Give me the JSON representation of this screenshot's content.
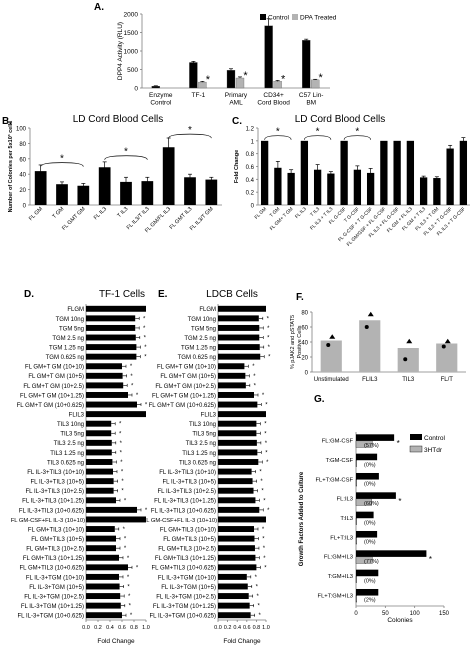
{
  "colors": {
    "black": "#000000",
    "gray": "#b3b3b3",
    "gray_dark": "#8a8a8a",
    "axis": "#7f7f7f"
  },
  "chart_data": [
    {
      "panel": "A.",
      "type": "bar",
      "ylabel": "DPP4 Activity (RLU)",
      "ylim": [
        0,
        2000
      ],
      "yticks": [
        "0",
        "500",
        "1000",
        "1500",
        "2000"
      ],
      "legend": [
        "Control",
        "DPA Treated"
      ],
      "categories": [
        "Enzyme Control",
        "TF-1",
        "Primary AML",
        "CD34+ Cord Blood",
        "C57 Lin- BM"
      ],
      "series": [
        {
          "name": "Control",
          "values": [
            50,
            690,
            480,
            1680,
            1290
          ],
          "errors": [
            10,
            30,
            40,
            190,
            30
          ]
        },
        {
          "name": "DPA Treated",
          "values": [
            null,
            160,
            270,
            180,
            220
          ],
          "errors": [
            null,
            20,
            30,
            25,
            15
          ]
        }
      ],
      "stars": [
        false,
        true,
        true,
        true,
        true
      ]
    },
    {
      "panel": "B.",
      "type": "bar",
      "title": "LD Cord Blood Cells",
      "ylabel": "Number of Colonies per 5x10³ cells",
      "ylim": [
        0,
        100
      ],
      "yticks": [
        "0",
        "20",
        "40",
        "60",
        "80",
        "100"
      ],
      "categories": [
        "FL GM",
        "T GM",
        "FL GMT GM",
        "FL IL3",
        "T IL3",
        "FL IL3/T IL3",
        "FL GM/FL IL3",
        "FL GMT IL3",
        "FL IL3/T GM"
      ],
      "values": [
        44,
        27,
        25,
        49,
        30,
        31,
        75,
        36,
        33
      ],
      "errors": [
        8,
        3,
        3,
        7,
        6,
        5,
        12,
        4,
        3
      ]
    },
    {
      "panel": "C.",
      "type": "bar",
      "title": "LD Cord Blood Cells",
      "ylabel": "Fold Change",
      "ylim": [
        0,
        1.2
      ],
      "yticks": [
        "0",
        "0.2",
        "0.4",
        "0.6",
        "0.8",
        "1",
        "1.2"
      ],
      "categories": [
        "FL GM",
        "T GM",
        "FL GM+ T GM",
        "FL IL3",
        "T IL3",
        "FL IL3 + T IL3",
        "FL G-CSF",
        "T G-CSF",
        "FL G-CSF + T G-CSF",
        "FL GM/GSF + FL G-CSF",
        "FL IL3 + FL G-CSF",
        "FL GM + FL IL3",
        "FL GM + T IL3",
        "FL IL3 + T GM",
        "FL IL3 + T G-CSF",
        "FL IL3 + T G-CSF"
      ],
      "values": [
        1,
        0.58,
        0.5,
        1,
        0.55,
        0.49,
        1,
        0.55,
        0.5,
        1,
        1,
        1,
        0.43,
        0.42,
        0.88,
        1
      ],
      "errors": [
        0,
        0.1,
        0.05,
        0,
        0.08,
        0.03,
        0,
        0.06,
        0.07,
        0,
        0,
        0,
        0.02,
        0.02,
        0.05,
        0.05
      ]
    },
    {
      "panel": "D.",
      "type": "bar",
      "title": "TF-1 Cells",
      "xlabel": "Fold Change",
      "xlim": [
        0,
        1
      ],
      "xticks": [
        "0.0",
        "0.2",
        "0.4",
        "0.6",
        "0.8",
        "1.0"
      ],
      "rows": [
        {
          "label": "FLGM",
          "value": 1.0,
          "group": true
        },
        {
          "label": "TGM 10ng",
          "value": 0.82
        },
        {
          "label": "TGM 5ng",
          "value": 0.82
        },
        {
          "label": "TGM 2.5 ng",
          "value": 0.83
        },
        {
          "label": "TGM 1.25 ng",
          "value": 0.84
        },
        {
          "label": "TGM 0.625 ng",
          "value": 0.84
        },
        {
          "label": "FL GM+T GM (10+10)",
          "value": 0.6
        },
        {
          "label": "FL GM+T GM (10+5)",
          "value": 0.61
        },
        {
          "label": "FL GM+T GM (10+2.5)",
          "value": 0.62
        },
        {
          "label": "FL GM+T GM (10+1.25)",
          "value": 0.7
        },
        {
          "label": "FL GM+T GM (10+0.625)",
          "value": 0.85
        },
        {
          "label": "FLIL3",
          "value": 1.0,
          "group": true
        },
        {
          "label": "TIL3 10ng",
          "value": 0.42
        },
        {
          "label": "TIL3  5ng",
          "value": 0.42
        },
        {
          "label": "TIL3  2.5 ng",
          "value": 0.43
        },
        {
          "label": "TIL3  1.25 ng",
          "value": 0.43
        },
        {
          "label": "TIL3  0.625 ng",
          "value": 0.44
        },
        {
          "label": "FL IL-3+TIL3 (10+10)",
          "value": 0.45
        },
        {
          "label": "FL IL-3+TIL3 (10+5)",
          "value": 0.46
        },
        {
          "label": "FL IL-3+TIL3 (10+2.5)",
          "value": 0.46
        },
        {
          "label": "FL IL-3+TIL3 (10+1.25)",
          "value": 0.5
        },
        {
          "label": "FL IL-3+TIL3 (10+0.625)",
          "value": 0.85
        },
        {
          "label": "FL GM-CSF+FL IL-3 (10+10)",
          "value": 1.0,
          "group": true
        },
        {
          "label": "FL GM+TIL3 (10+10)",
          "value": 0.48
        },
        {
          "label": "FL GM+TIL3 (10+5)",
          "value": 0.5
        },
        {
          "label": "FL GM+TIL3 (10+2.5)",
          "value": 0.5
        },
        {
          "label": "FL GM+TIL3 (10+1.25)",
          "value": 0.55
        },
        {
          "label": "FL GM+TIL3 (10+0.625)",
          "value": 0.7
        },
        {
          "label": "FL IL-3+TGM (10+10)",
          "value": 0.55
        },
        {
          "label": "FL IL-3+TGM (10+5)",
          "value": 0.56
        },
        {
          "label": "FL IL-3+TGM (10+2.5)",
          "value": 0.57
        },
        {
          "label": "FL IL-3+TGM (10+1.25)",
          "value": 0.58
        },
        {
          "label": "FL IL-3+TGM (10+0.625)",
          "value": 0.6
        }
      ]
    },
    {
      "panel": "E.",
      "type": "bar",
      "title": "LDCB Cells",
      "xlabel": "Fold Change",
      "xlim": [
        0,
        1
      ],
      "xticks": [
        "0.0",
        "0.2",
        "0.4",
        "0.6",
        "0.8",
        "1.0"
      ],
      "rows": [
        {
          "label": "FLGM",
          "value": 1.0,
          "group": true
        },
        {
          "label": "TGM 10ng",
          "value": 0.85
        },
        {
          "label": "TGM 5ng",
          "value": 0.86
        },
        {
          "label": "TGM 2.5 ng",
          "value": 0.86
        },
        {
          "label": "TGM 1.25 ng",
          "value": 0.87
        },
        {
          "label": "TGM 0.625 ng",
          "value": 0.88
        },
        {
          "label": "FL GM+T GM (10+10)",
          "value": 0.55
        },
        {
          "label": "FL GM+T GM (10+5)",
          "value": 0.57
        },
        {
          "label": "FL GM+T GM (10+2.5)",
          "value": 0.58
        },
        {
          "label": "FL GM+T GM (10+1.25)",
          "value": 0.75
        },
        {
          "label": "FL GM+T GM (10+0.625)",
          "value": 0.82
        },
        {
          "label": "FLIL3",
          "value": 1.0,
          "group": true
        },
        {
          "label": "TIL3 10ng",
          "value": 0.8
        },
        {
          "label": "TIL3  5ng",
          "value": 0.8
        },
        {
          "label": "TIL3  2.5 ng",
          "value": 0.81
        },
        {
          "label": "TIL3  1.25 ng",
          "value": 0.82
        },
        {
          "label": "TIL3  0.625 ng",
          "value": 0.84
        },
        {
          "label": "FL IL-3+TIL3 (10+10)",
          "value": 0.7
        },
        {
          "label": "FL IL-3+TIL3 (10+5)",
          "value": 0.72
        },
        {
          "label": "FL IL-3+TIL3 (10+2.5)",
          "value": 0.74
        },
        {
          "label": "FL IL-3+TIL3 (10+1.25)",
          "value": 0.78
        },
        {
          "label": "FL IL-3+TIL3 (10+0.625)",
          "value": 0.86
        },
        {
          "label": "FL GM-CSF+FL  IL-3 (10+10)",
          "value": 1.0,
          "group": true
        },
        {
          "label": "FL GM+TIL3 (10+10)",
          "value": 0.75
        },
        {
          "label": "FL GM+TIL3 (10+5)",
          "value": 0.76
        },
        {
          "label": "FL GM+TIL3 (10+2.5)",
          "value": 0.77
        },
        {
          "label": "FL GM+TIL3 (10+1.25)",
          "value": 0.78
        },
        {
          "label": "FL GM+TIL3 (10+0.625)",
          "value": 0.8
        },
        {
          "label": "FL IL-3+TGM (10+10)",
          "value": 0.6
        },
        {
          "label": "FL IL-3+TGM (10+5)",
          "value": 0.62
        },
        {
          "label": "FL IL-3+TGM (10+2.5)",
          "value": 0.64
        },
        {
          "label": "FL IL-3+TGM (10+1.25)",
          "value": 0.66
        },
        {
          "label": "FL IL-3+TGM (10+0.625)",
          "value": 0.68
        }
      ]
    },
    {
      "panel": "F.",
      "type": "bar",
      "ylabel": "% pJAK2 and pSTAT5 Positive Cells",
      "ylim": [
        0,
        80
      ],
      "yticks": [
        "0",
        "20",
        "40",
        "60",
        "80"
      ],
      "categories": [
        "Unstimulated",
        "FLIL3",
        "TIL3",
        "FL/T"
      ],
      "values": [
        42,
        69,
        32,
        38
      ],
      "points": [
        [
          36,
          47
        ],
        [
          60,
          77
        ],
        [
          17,
          41
        ],
        [
          34,
          41
        ]
      ]
    },
    {
      "panel": "G.",
      "type": "bar",
      "ylabel": "Growth Factors Added to Culture",
      "xlabel": "Colonies",
      "xlim": [
        0,
        150
      ],
      "xticks": [
        "0",
        "50",
        "100",
        "150"
      ],
      "legend": [
        "Control",
        "3HTdr"
      ],
      "categories": [
        "FL:GM-CSF",
        "T:GM-CSF",
        "FL+T:GM-CSF",
        "FL:IL3",
        "T:IL3",
        "FL+T:IL3",
        "FL:GM+IL3",
        "T:GM+IL3",
        "FL+T:GM+IL3"
      ],
      "series": [
        {
          "name": "Control",
          "values": [
            65,
            36,
            39,
            68,
            30,
            36,
            120,
            38,
            38
          ]
        },
        {
          "name": "3HTdr",
          "values": [
            28,
            0,
            0,
            27,
            0,
            0,
            28,
            0,
            1
          ]
        }
      ],
      "annotations": [
        "(57%)",
        "(0%)",
        "(0%)",
        "(60%)",
        "(0%)",
        "(0%)",
        "(77%)",
        "(0%)",
        "(2%)"
      ],
      "stars": [
        true,
        false,
        false,
        true,
        false,
        false,
        true,
        false,
        false
      ]
    }
  ]
}
